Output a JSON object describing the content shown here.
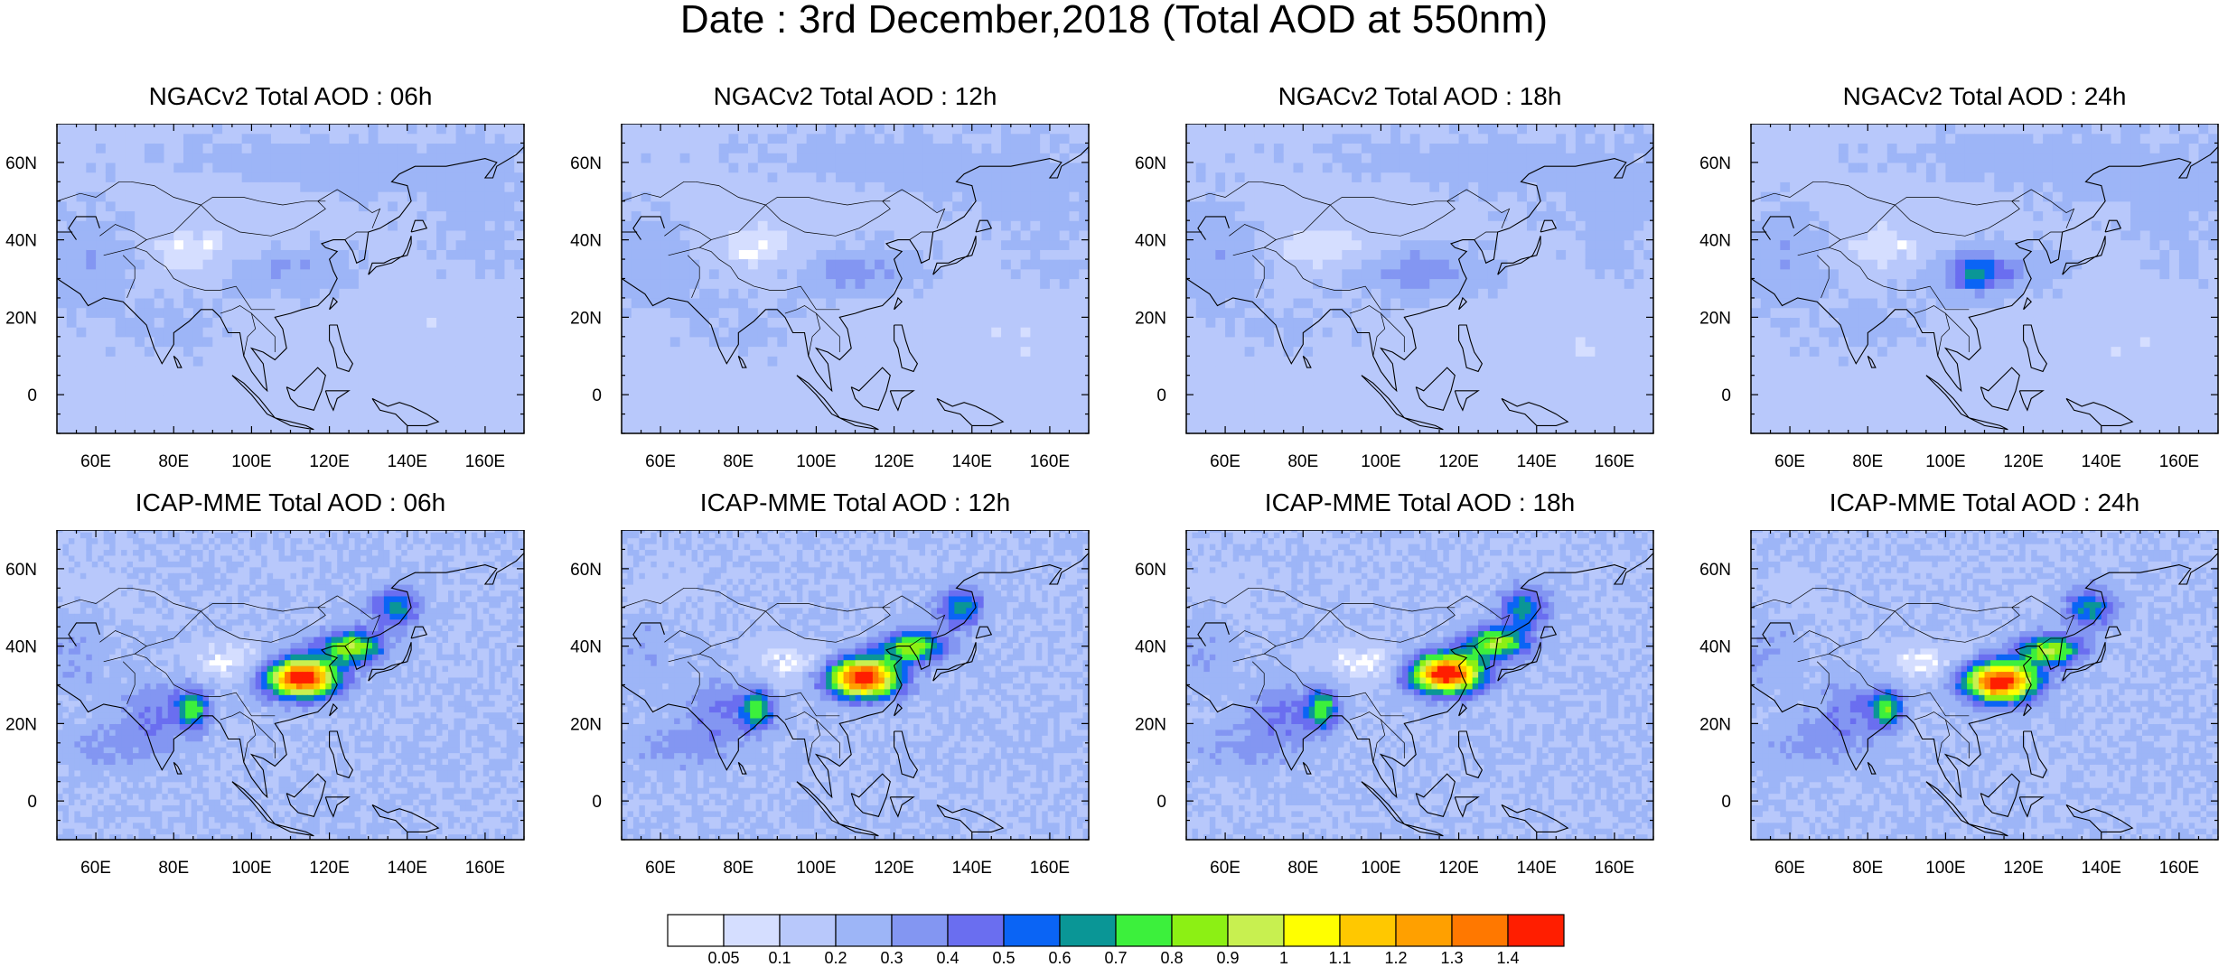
{
  "figure_title": "Date : 3rd December,2018 (Total AOD at 550nm)",
  "panels": [
    {
      "title": "NGACv2 Total AOD : 06h",
      "model": "ngac",
      "hour": "06h"
    },
    {
      "title": "NGACv2 Total AOD : 12h",
      "model": "ngac",
      "hour": "12h"
    },
    {
      "title": "NGACv2 Total AOD : 18h",
      "model": "ngac",
      "hour": "18h"
    },
    {
      "title": "NGACv2 Total AOD : 24h",
      "model": "ngac",
      "hour": "24h"
    },
    {
      "title": "ICAP-MME Total AOD : 06h",
      "model": "icap",
      "hour": "06h"
    },
    {
      "title": "ICAP-MME Total AOD : 12h",
      "model": "icap",
      "hour": "12h"
    },
    {
      "title": "ICAP-MME Total AOD : 18h",
      "model": "icap",
      "hour": "18h"
    },
    {
      "title": "ICAP-MME Total AOD : 24h",
      "model": "icap",
      "hour": "24h"
    }
  ],
  "map": {
    "lon_range": [
      50,
      170
    ],
    "lat_range": [
      -10,
      70
    ],
    "lon_ticks": [
      60,
      80,
      100,
      120,
      140,
      160
    ],
    "lon_tick_labels": [
      "60E",
      "80E",
      "100E",
      "120E",
      "140E",
      "160E"
    ],
    "lat_ticks": [
      0,
      20,
      40,
      60
    ],
    "lat_tick_labels": [
      "0",
      "20N",
      "40N",
      "60N"
    ]
  },
  "colorbar": {
    "labels": [
      "0.05",
      "0.1",
      "0.2",
      "0.3",
      "0.4",
      "0.5",
      "0.6",
      "0.7",
      "0.8",
      "0.9",
      "1",
      "1.1",
      "1.2",
      "1.3",
      "1.4"
    ],
    "colors": [
      "#ffffff",
      "#d5deff",
      "#b8c8fb",
      "#9db5f7",
      "#8396f2",
      "#6a6ef0",
      "#0a64f5",
      "#0a9696",
      "#3cf03c",
      "#8cf014",
      "#c8f050",
      "#ffff00",
      "#ffc800",
      "#ffa000",
      "#ff7800",
      "#ff1e00"
    ]
  }
}
